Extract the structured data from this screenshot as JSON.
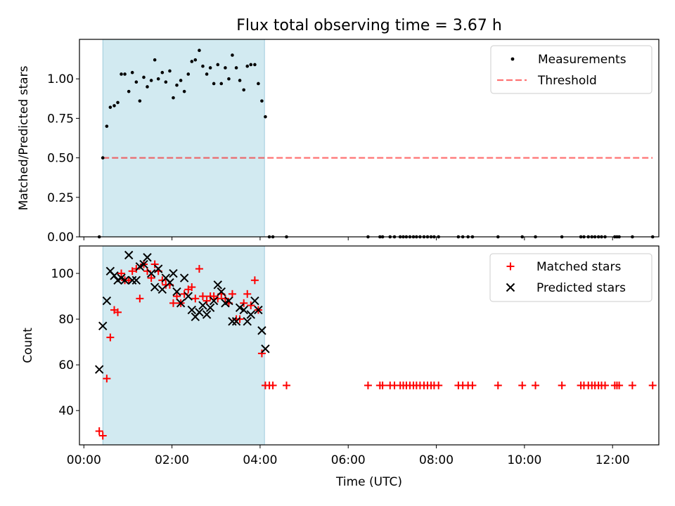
{
  "title": "Flux total observing time = 3.67 h",
  "colors": {
    "shade": "#add8e6",
    "measurement": "#000000",
    "threshold": "#ff0000",
    "matched": "#ff0000",
    "predicted": "#000000"
  },
  "chart_data": [
    {
      "type": "scatter",
      "ylabel": "Matched/Predicted stars",
      "xlim": [
        -0.1,
        13.05
      ],
      "ylim": [
        0,
        1.25
      ],
      "x_unit": "hours (UTC)",
      "yticks": [
        0.0,
        0.25,
        0.5,
        0.75,
        1.0
      ],
      "ytick_labels": [
        "0.00",
        "0.25",
        "0.50",
        "0.75",
        "1.00"
      ],
      "shaded_interval_hours": [
        0.43,
        4.1
      ],
      "legend": {
        "placement": "top-right",
        "entries": [
          "Measurements",
          "Threshold"
        ]
      },
      "threshold": {
        "name": "Threshold",
        "value": 0.5,
        "x_range_hours": [
          0.43,
          12.91
        ],
        "style": "dashed"
      },
      "series": [
        {
          "name": "Measurements",
          "marker": "dot",
          "x": [
            0.35,
            0.43,
            0.52,
            0.6,
            0.69,
            0.77,
            0.85,
            0.93,
            1.02,
            1.1,
            1.19,
            1.27,
            1.36,
            1.44,
            1.53,
            1.61,
            1.69,
            1.78,
            1.86,
            1.95,
            2.03,
            2.11,
            2.2,
            2.28,
            2.37,
            2.45,
            2.53,
            2.62,
            2.7,
            2.79,
            2.87,
            2.95,
            3.04,
            3.12,
            3.21,
            3.29,
            3.37,
            3.46,
            3.54,
            3.63,
            3.71,
            3.79,
            3.88,
            3.96,
            4.04,
            4.12,
            4.21,
            4.29,
            4.6,
            6.45,
            6.72,
            6.78,
            6.95,
            7.05,
            7.18,
            7.25,
            7.32,
            7.4,
            7.48,
            7.55,
            7.63,
            7.72,
            7.8,
            7.88,
            7.95,
            8.05,
            8.5,
            8.6,
            8.72,
            8.82,
            9.4,
            9.95,
            10.25,
            10.85,
            11.28,
            11.35,
            11.45,
            11.53,
            11.6,
            11.68,
            11.75,
            11.83,
            12.05,
            12.1,
            12.15,
            12.45,
            12.91
          ],
          "y": [
            0.0,
            0.5,
            0.7,
            0.82,
            0.83,
            0.85,
            1.03,
            1.03,
            0.92,
            1.04,
            0.98,
            0.86,
            1.01,
            0.95,
            0.99,
            1.12,
            1.0,
            1.04,
            0.98,
            1.05,
            0.88,
            0.96,
            0.99,
            0.92,
            1.03,
            1.11,
            1.12,
            1.18,
            1.08,
            1.03,
            1.07,
            0.97,
            1.09,
            0.97,
            1.07,
            1.0,
            1.15,
            1.07,
            0.99,
            0.93,
            1.08,
            1.09,
            1.09,
            0.97,
            0.86,
            0.76,
            0.0,
            0.0,
            0.0,
            0.0,
            0.0,
            0.0,
            0.0,
            0.0,
            0.0,
            0.0,
            0.0,
            0.0,
            0.0,
            0.0,
            0.0,
            0.0,
            0.0,
            0.0,
            0.0,
            0.0,
            0.0,
            0.0,
            0.0,
            0.0,
            0.0,
            0.0,
            0.0,
            0.0,
            0.0,
            0.0,
            0.0,
            0.0,
            0.0,
            0.0,
            0.0,
            0.0,
            0.0,
            0.0,
            0.0,
            0.0,
            0.0
          ]
        }
      ]
    },
    {
      "type": "scatter",
      "xlabel": "Time (UTC)",
      "ylabel": "Count",
      "xlim": [
        -0.1,
        13.05
      ],
      "ylim": [
        25,
        112
      ],
      "x_unit": "hours (UTC)",
      "xticks": [
        0,
        2,
        4,
        6,
        8,
        10,
        12
      ],
      "xtick_labels": [
        "00:00",
        "02:00",
        "04:00",
        "06:00",
        "08:00",
        "10:00",
        "12:00"
      ],
      "yticks": [
        40,
        60,
        80,
        100
      ],
      "ytick_labels": [
        "40",
        "60",
        "80",
        "100"
      ],
      "shaded_interval_hours": [
        0.43,
        4.1
      ],
      "legend": {
        "placement": "top-right",
        "entries": [
          "Matched stars",
          "Predicted stars"
        ]
      },
      "series": [
        {
          "name": "Matched stars",
          "marker": "plus",
          "x": [
            0.35,
            0.43,
            0.52,
            0.6,
            0.69,
            0.77,
            0.85,
            0.93,
            1.02,
            1.1,
            1.19,
            1.27,
            1.36,
            1.44,
            1.53,
            1.61,
            1.69,
            1.78,
            1.86,
            1.95,
            2.03,
            2.11,
            2.2,
            2.28,
            2.37,
            2.45,
            2.53,
            2.62,
            2.7,
            2.79,
            2.87,
            2.95,
            3.04,
            3.12,
            3.21,
            3.29,
            3.37,
            3.46,
            3.54,
            3.63,
            3.71,
            3.79,
            3.88,
            3.96,
            4.04,
            4.12,
            4.21,
            4.29,
            4.6,
            6.45,
            6.72,
            6.78,
            6.95,
            7.05,
            7.18,
            7.25,
            7.32,
            7.4,
            7.48,
            7.55,
            7.63,
            7.72,
            7.8,
            7.88,
            7.95,
            8.05,
            8.5,
            8.6,
            8.72,
            8.82,
            9.4,
            9.95,
            10.25,
            10.85,
            11.28,
            11.35,
            11.45,
            11.53,
            11.6,
            11.68,
            11.75,
            11.83,
            12.05,
            12.1,
            12.15,
            12.45,
            12.91
          ],
          "y": [
            31,
            29,
            54,
            72,
            84,
            83,
            100,
            97,
            97,
            101,
            102,
            89,
            104,
            101,
            98,
            104,
            101,
            97,
            95,
            95,
            87,
            90,
            87,
            91,
            93,
            94,
            89,
            102,
            90,
            88,
            90,
            90,
            89,
            91,
            89,
            87,
            91,
            80,
            80,
            87,
            91,
            86,
            97,
            84,
            65,
            51,
            51,
            51,
            51,
            51,
            51,
            51,
            51,
            51,
            51,
            51,
            51,
            51,
            51,
            51,
            51,
            51,
            51,
            51,
            51,
            51,
            51,
            51,
            51,
            51,
            51,
            51,
            51,
            51,
            51,
            51,
            51,
            51,
            51,
            51,
            51,
            51,
            51,
            51,
            51,
            51,
            51
          ]
        },
        {
          "name": "Predicted stars",
          "marker": "x",
          "x": [
            0.35,
            0.43,
            0.52,
            0.6,
            0.69,
            0.77,
            0.85,
            0.93,
            1.02,
            1.1,
            1.19,
            1.27,
            1.36,
            1.44,
            1.53,
            1.61,
            1.69,
            1.78,
            1.86,
            1.95,
            2.03,
            2.11,
            2.2,
            2.28,
            2.37,
            2.45,
            2.53,
            2.62,
            2.7,
            2.79,
            2.87,
            2.95,
            3.04,
            3.12,
            3.21,
            3.29,
            3.37,
            3.46,
            3.54,
            3.63,
            3.71,
            3.79,
            3.88,
            3.96,
            4.04,
            4.12
          ],
          "y": [
            58,
            77,
            88,
            101,
            99,
            97,
            98,
            97,
            108,
            97,
            97,
            103,
            104,
            107,
            100,
            94,
            102,
            93,
            98,
            96,
            100,
            92,
            87,
            98,
            90,
            84,
            81,
            83,
            86,
            82,
            85,
            88,
            95,
            92,
            87,
            88,
            79,
            79,
            85,
            84,
            79,
            82,
            88,
            84,
            75,
            67
          ]
        }
      ]
    }
  ]
}
